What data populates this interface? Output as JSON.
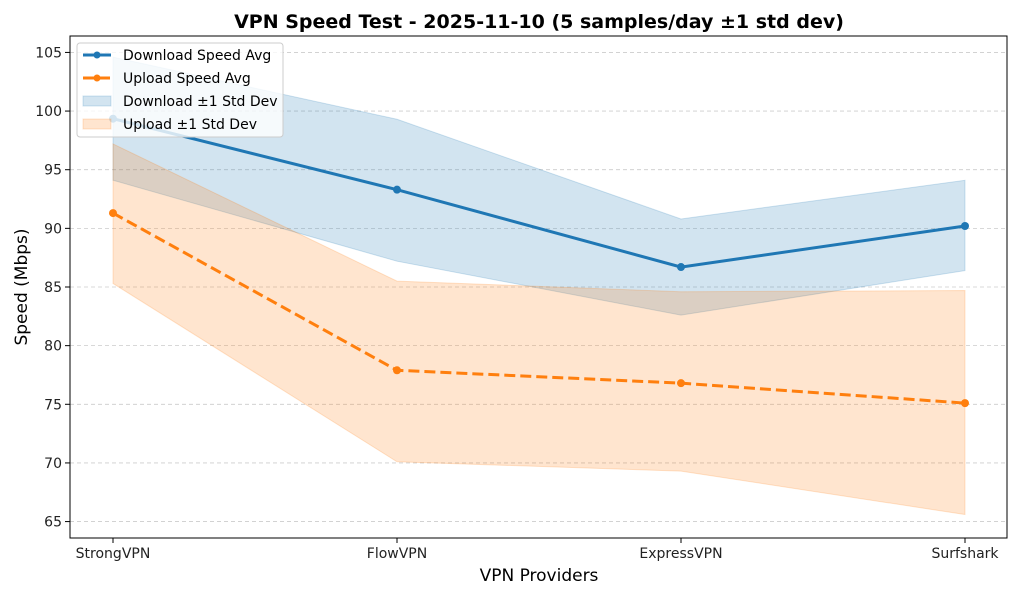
{
  "chart_data": {
    "type": "line",
    "title": "VPN Speed Test - 2025-11-10 (5 samples/day ±1 std dev)",
    "xlabel": "VPN Providers",
    "ylabel": "Speed (Mbps)",
    "categories": [
      "StrongVPN",
      "FlowVPN",
      "ExpressVPN",
      "Surfshark"
    ],
    "ylim": [
      63.6,
      106.4
    ],
    "yticks": [
      65,
      70,
      75,
      80,
      85,
      90,
      95,
      100,
      105
    ],
    "grid": "y-dashed",
    "legend_position": "top-left",
    "series": [
      {
        "name": "Download Speed Avg",
        "color": "#1f77b4",
        "linestyle": "solid",
        "marker": "circle",
        "values": [
          99.35,
          93.3,
          86.7,
          90.2
        ],
        "band_name": "Download ±1 Std Dev",
        "band_upper": [
          104.6,
          99.3,
          90.8,
          94.1
        ],
        "band_lower": [
          94.1,
          87.2,
          82.6,
          86.4
        ]
      },
      {
        "name": "Upload Speed Avg",
        "color": "#ff7f0e",
        "linestyle": "dashed",
        "marker": "circle",
        "values": [
          91.3,
          77.9,
          76.8,
          75.1
        ],
        "band_name": "Upload ±1 Std Dev",
        "band_upper": [
          97.2,
          85.5,
          84.6,
          84.7
        ],
        "band_lower": [
          85.3,
          70.1,
          69.3,
          65.6
        ]
      }
    ],
    "legend": [
      "Download Speed Avg",
      "Upload Speed Avg",
      "Download ±1 Std Dev",
      "Upload ±1 Std Dev"
    ]
  }
}
